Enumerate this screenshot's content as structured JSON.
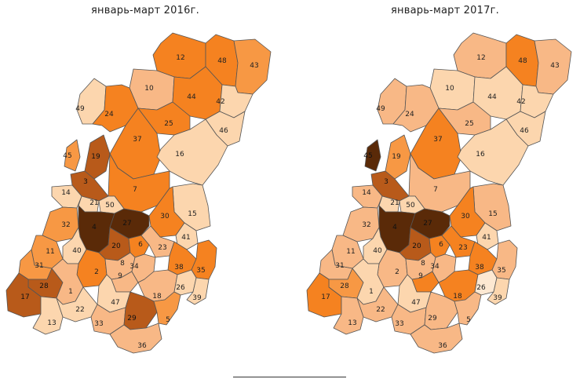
{
  "titles": {
    "left": "январь-март 2016г.",
    "right": "январь-март 2017г."
  },
  "palette": {
    "level1": "#fcd6ae",
    "level2": "#f8b886",
    "level3": "#f79844",
    "level4": "#f58220",
    "level5": "#b85a1a",
    "level6": "#5a2a08"
  },
  "maps": [
    {
      "id": "map-2016",
      "regions": [
        {
          "id": "12",
          "level": 4
        },
        {
          "id": "48",
          "level": 4
        },
        {
          "id": "43",
          "level": 3
        },
        {
          "id": "10",
          "level": 2
        },
        {
          "id": "44",
          "level": 4
        },
        {
          "id": "42",
          "level": 1
        },
        {
          "id": "49",
          "level": 1
        },
        {
          "id": "24",
          "level": 4
        },
        {
          "id": "25",
          "level": 4
        },
        {
          "id": "46",
          "level": 1
        },
        {
          "id": "37",
          "level": 4
        },
        {
          "id": "45",
          "level": 3
        },
        {
          "id": "19",
          "level": 5
        },
        {
          "id": "16",
          "level": 1
        },
        {
          "id": "3",
          "level": 5
        },
        {
          "id": "14",
          "level": 1
        },
        {
          "id": "7",
          "level": 4
        },
        {
          "id": "21",
          "level": 1
        },
        {
          "id": "50",
          "level": 1
        },
        {
          "id": "15",
          "level": 1
        },
        {
          "id": "30",
          "level": 4
        },
        {
          "id": "32",
          "level": 3
        },
        {
          "id": "4",
          "level": 6
        },
        {
          "id": "27",
          "level": 6
        },
        {
          "id": "41",
          "level": 1
        },
        {
          "id": "11",
          "level": 3
        },
        {
          "id": "40",
          "level": 1
        },
        {
          "id": "20",
          "level": 5
        },
        {
          "id": "6",
          "level": 4
        },
        {
          "id": "23",
          "level": 2
        },
        {
          "id": "31",
          "level": 3
        },
        {
          "id": "2",
          "level": 4
        },
        {
          "id": "8",
          "level": 2
        },
        {
          "id": "9",
          "level": 2
        },
        {
          "id": "34",
          "level": 2
        },
        {
          "id": "38",
          "level": 4
        },
        {
          "id": "35",
          "level": 4
        },
        {
          "id": "28",
          "level": 5
        },
        {
          "id": "1",
          "level": 2
        },
        {
          "id": "17",
          "level": 5
        },
        {
          "id": "47",
          "level": 1
        },
        {
          "id": "18",
          "level": 2
        },
        {
          "id": "26",
          "level": 1
        },
        {
          "id": "39",
          "level": 1
        },
        {
          "id": "22",
          "level": 1
        },
        {
          "id": "13",
          "level": 1
        },
        {
          "id": "33",
          "level": 2
        },
        {
          "id": "29",
          "level": 5
        },
        {
          "id": "5",
          "level": 3
        },
        {
          "id": "36",
          "level": 2
        }
      ]
    },
    {
      "id": "map-2017",
      "regions": [
        {
          "id": "12",
          "level": 2
        },
        {
          "id": "48",
          "level": 4
        },
        {
          "id": "43",
          "level": 2
        },
        {
          "id": "10",
          "level": 1
        },
        {
          "id": "44",
          "level": 1
        },
        {
          "id": "42",
          "level": 1
        },
        {
          "id": "49",
          "level": 2
        },
        {
          "id": "24",
          "level": 2
        },
        {
          "id": "25",
          "level": 2
        },
        {
          "id": "46",
          "level": 1
        },
        {
          "id": "37",
          "level": 4
        },
        {
          "id": "45",
          "level": 6
        },
        {
          "id": "19",
          "level": 3
        },
        {
          "id": "16",
          "level": 1
        },
        {
          "id": "3",
          "level": 5
        },
        {
          "id": "14",
          "level": 2
        },
        {
          "id": "7",
          "level": 2
        },
        {
          "id": "21",
          "level": 1
        },
        {
          "id": "50",
          "level": 1
        },
        {
          "id": "15",
          "level": 2
        },
        {
          "id": "30",
          "level": 4
        },
        {
          "id": "32",
          "level": 2
        },
        {
          "id": "4",
          "level": 6
        },
        {
          "id": "27",
          "level": 6
        },
        {
          "id": "41",
          "level": 1
        },
        {
          "id": "11",
          "level": 2
        },
        {
          "id": "40",
          "level": 1
        },
        {
          "id": "20",
          "level": 5
        },
        {
          "id": "6",
          "level": 4
        },
        {
          "id": "23",
          "level": 4
        },
        {
          "id": "31",
          "level": 2
        },
        {
          "id": "2",
          "level": 2
        },
        {
          "id": "8",
          "level": 2
        },
        {
          "id": "9",
          "level": 4
        },
        {
          "id": "34",
          "level": 2
        },
        {
          "id": "38",
          "level": 4
        },
        {
          "id": "35",
          "level": 2
        },
        {
          "id": "28",
          "level": 3
        },
        {
          "id": "1",
          "level": 1
        },
        {
          "id": "17",
          "level": 4
        },
        {
          "id": "47",
          "level": 1
        },
        {
          "id": "18",
          "level": 4
        },
        {
          "id": "26",
          "level": 0
        },
        {
          "id": "39",
          "level": 1
        },
        {
          "id": "22",
          "level": 2
        },
        {
          "id": "13",
          "level": 2
        },
        {
          "id": "33",
          "level": 2
        },
        {
          "id": "29",
          "level": 2
        },
        {
          "id": "5",
          "level": 2
        },
        {
          "id": "36",
          "level": 2
        }
      ]
    }
  ]
}
